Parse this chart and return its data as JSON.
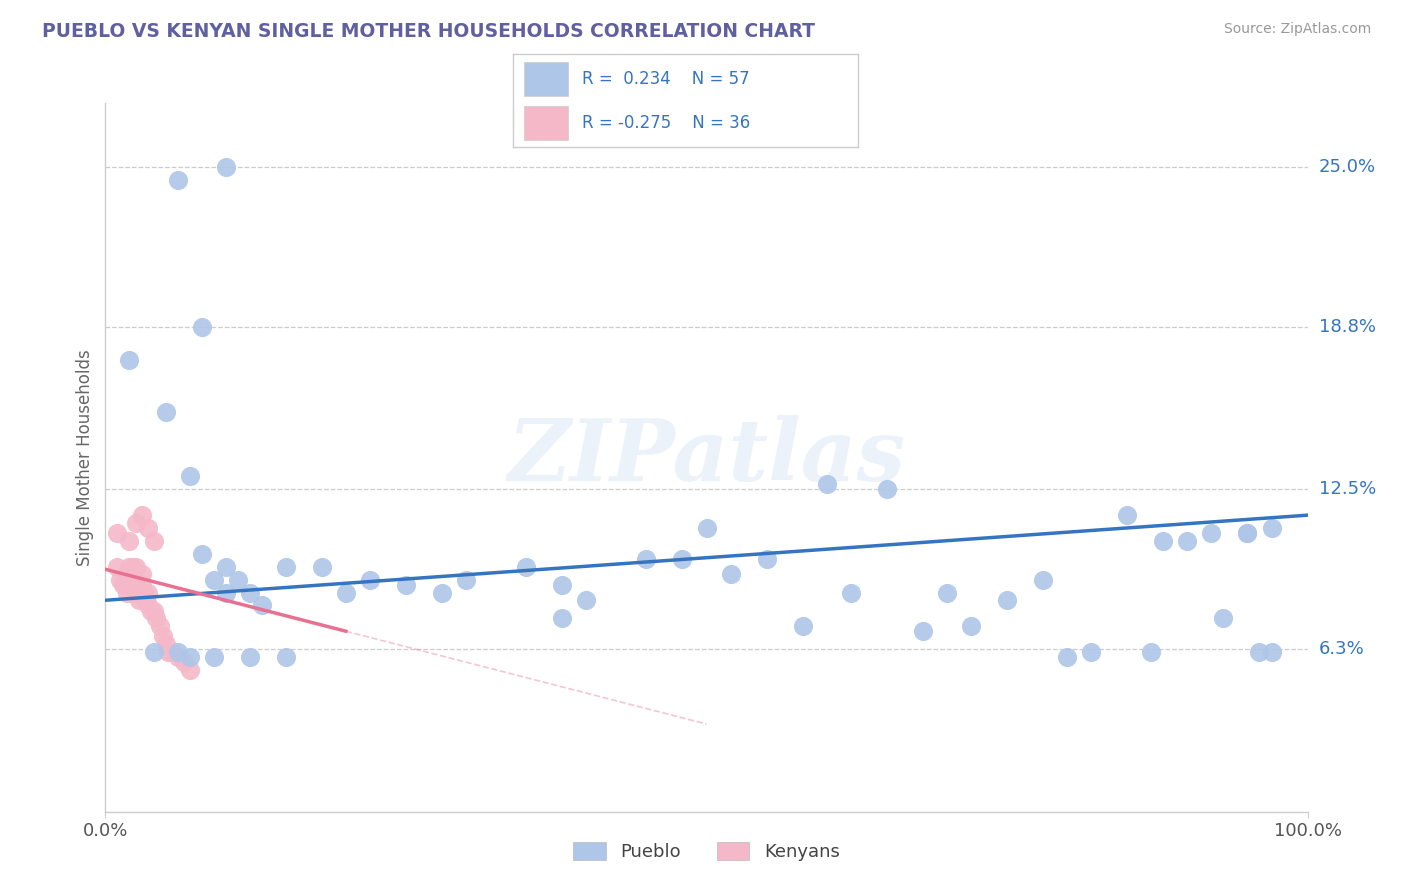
{
  "title": "PUEBLO VS KENYAN SINGLE MOTHER HOUSEHOLDS CORRELATION CHART",
  "source": "Source: ZipAtlas.com",
  "ylabel": "Single Mother Households",
  "xlim": [
    0.0,
    1.0
  ],
  "ylim": [
    0.0,
    0.275
  ],
  "xtick_positions": [
    0.0,
    1.0
  ],
  "xtick_labels": [
    "0.0%",
    "100.0%"
  ],
  "ytick_values": [
    0.063,
    0.125,
    0.188,
    0.25
  ],
  "ytick_labels": [
    "6.3%",
    "12.5%",
    "18.8%",
    "25.0%"
  ],
  "legend_labels": [
    "Pueblo",
    "Kenyans"
  ],
  "pueblo_r": 0.234,
  "pueblo_n": 57,
  "kenyan_r": -0.275,
  "kenyan_n": 36,
  "pueblo_color": "#aec6e8",
  "kenyan_color": "#f4b8c8",
  "pueblo_line_color": "#3575c0",
  "kenyan_line_color": "#e87090",
  "watermark": "ZIPatlas",
  "title_color": "#6060a0",
  "source_color": "#999999",
  "pueblo_line_x0": 0.0,
  "pueblo_line_x1": 1.0,
  "pueblo_line_y0": 0.082,
  "pueblo_line_y1": 0.115,
  "kenyan_line_x0": 0.0,
  "kenyan_line_x1": 0.2,
  "kenyan_line_y0": 0.094,
  "kenyan_line_y1": 0.07,
  "pueblo_scatter_x": [
    0.02,
    0.05,
    0.07,
    0.08,
    0.09,
    0.1,
    0.1,
    0.11,
    0.12,
    0.13,
    0.15,
    0.15,
    0.18,
    0.2,
    0.22,
    0.25,
    0.28,
    0.3,
    0.35,
    0.38,
    0.38,
    0.4,
    0.45,
    0.48,
    0.52,
    0.55,
    0.6,
    0.62,
    0.65,
    0.7,
    0.72,
    0.75,
    0.78,
    0.82,
    0.85,
    0.87,
    0.88,
    0.9,
    0.92,
    0.93,
    0.95,
    0.96,
    0.97,
    0.97,
    0.06,
    0.08,
    0.1,
    0.04,
    0.06,
    0.07,
    0.09,
    0.12,
    0.5,
    0.58,
    0.68,
    0.8,
    0.95
  ],
  "pueblo_scatter_y": [
    0.175,
    0.155,
    0.13,
    0.1,
    0.09,
    0.095,
    0.085,
    0.09,
    0.085,
    0.08,
    0.095,
    0.06,
    0.095,
    0.085,
    0.09,
    0.088,
    0.085,
    0.09,
    0.095,
    0.075,
    0.088,
    0.082,
    0.098,
    0.098,
    0.092,
    0.098,
    0.127,
    0.085,
    0.125,
    0.085,
    0.072,
    0.082,
    0.09,
    0.062,
    0.115,
    0.062,
    0.105,
    0.105,
    0.108,
    0.075,
    0.108,
    0.062,
    0.062,
    0.11,
    0.245,
    0.188,
    0.25,
    0.062,
    0.062,
    0.06,
    0.06,
    0.06,
    0.11,
    0.072,
    0.07,
    0.06,
    0.108
  ],
  "kenyan_scatter_x": [
    0.01,
    0.012,
    0.015,
    0.018,
    0.018,
    0.02,
    0.02,
    0.022,
    0.022,
    0.025,
    0.025,
    0.025,
    0.028,
    0.03,
    0.03,
    0.032,
    0.033,
    0.035,
    0.035,
    0.038,
    0.04,
    0.042,
    0.045,
    0.048,
    0.05,
    0.052,
    0.055,
    0.06,
    0.065,
    0.07,
    0.01,
    0.02,
    0.025,
    0.03,
    0.035,
    0.04
  ],
  "kenyan_scatter_y": [
    0.095,
    0.09,
    0.088,
    0.085,
    0.092,
    0.09,
    0.095,
    0.088,
    0.095,
    0.085,
    0.09,
    0.095,
    0.082,
    0.088,
    0.092,
    0.085,
    0.082,
    0.08,
    0.085,
    0.078,
    0.078,
    0.075,
    0.072,
    0.068,
    0.065,
    0.062,
    0.062,
    0.06,
    0.058,
    0.055,
    0.108,
    0.105,
    0.112,
    0.115,
    0.11,
    0.105
  ]
}
